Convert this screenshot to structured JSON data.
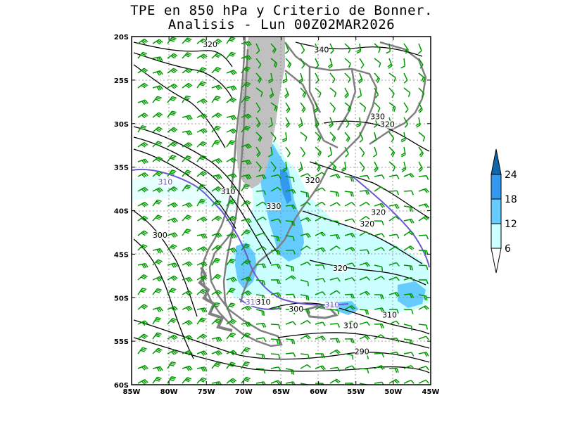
{
  "title": {
    "line1": "TPE en 850 hPa y Criterio de Bonner.",
    "line2": "Analisis - Lun 00Z02MAR2026"
  },
  "map": {
    "lat_ticks": [
      "20S",
      "25S",
      "30S",
      "35S",
      "40S",
      "45S",
      "50S",
      "55S",
      "60S"
    ],
    "lon_ticks": [
      "85W",
      "80W",
      "75W",
      "70W",
      "65W",
      "60W",
      "55W",
      "50W",
      "45W"
    ],
    "extent": {
      "lon_min": -85,
      "lon_max": -45,
      "lat_min": -60,
      "lat_max": -20
    },
    "contour_labels": [
      {
        "text": "320",
        "lon": -74.5,
        "lat": -21.2
      },
      {
        "text": "340",
        "lon": -59.6,
        "lat": -21.8
      },
      {
        "text": "330",
        "lon": -52.1,
        "lat": -29.5
      },
      {
        "text": "320",
        "lon": -50.8,
        "lat": -30.4
      },
      {
        "text": "320",
        "lon": -60.8,
        "lat": -36.8
      },
      {
        "text": "310",
        "lon": -80.5,
        "lat": -37.0
      },
      {
        "text": "310",
        "lon": -72.1,
        "lat": -38.1
      },
      {
        "text": "330",
        "lon": -66.0,
        "lat": -39.8
      },
      {
        "text": "320",
        "lon": -52.0,
        "lat": -40.5
      },
      {
        "text": "320",
        "lon": -53.5,
        "lat": -41.8
      },
      {
        "text": "300",
        "lon": -81.2,
        "lat": -43.1
      },
      {
        "text": "320",
        "lon": -57.1,
        "lat": -46.9
      },
      {
        "text": "310",
        "lon": -68.8,
        "lat": -50.8
      },
      {
        "text": "310",
        "lon": -67.4,
        "lat": -50.8
      },
      {
        "text": "310",
        "lon": -58.2,
        "lat": -51.1
      },
      {
        "text": "300",
        "lon": -63.0,
        "lat": -51.6
      },
      {
        "text": "310",
        "lon": -50.5,
        "lat": -52.3
      },
      {
        "text": "310",
        "lon": -55.7,
        "lat": -53.5
      },
      {
        "text": "290",
        "lon": -54.2,
        "lat": -56.5
      }
    ]
  },
  "colorbar": {
    "labels": [
      "6",
      "12",
      "18",
      "24"
    ],
    "colors": [
      "#ccffff",
      "#66ccff",
      "#3399ee",
      "#1166aa"
    ]
  },
  "colors": {
    "shade_light": "#ccffff",
    "shade_mid": "#66ccff",
    "shade_dark": "#3399ee",
    "terrain": "#c0c0c0",
    "coastline": "#808080",
    "isoline": "#000000",
    "isoline_310": "#6a5acd",
    "wind_barb": "#009900"
  }
}
